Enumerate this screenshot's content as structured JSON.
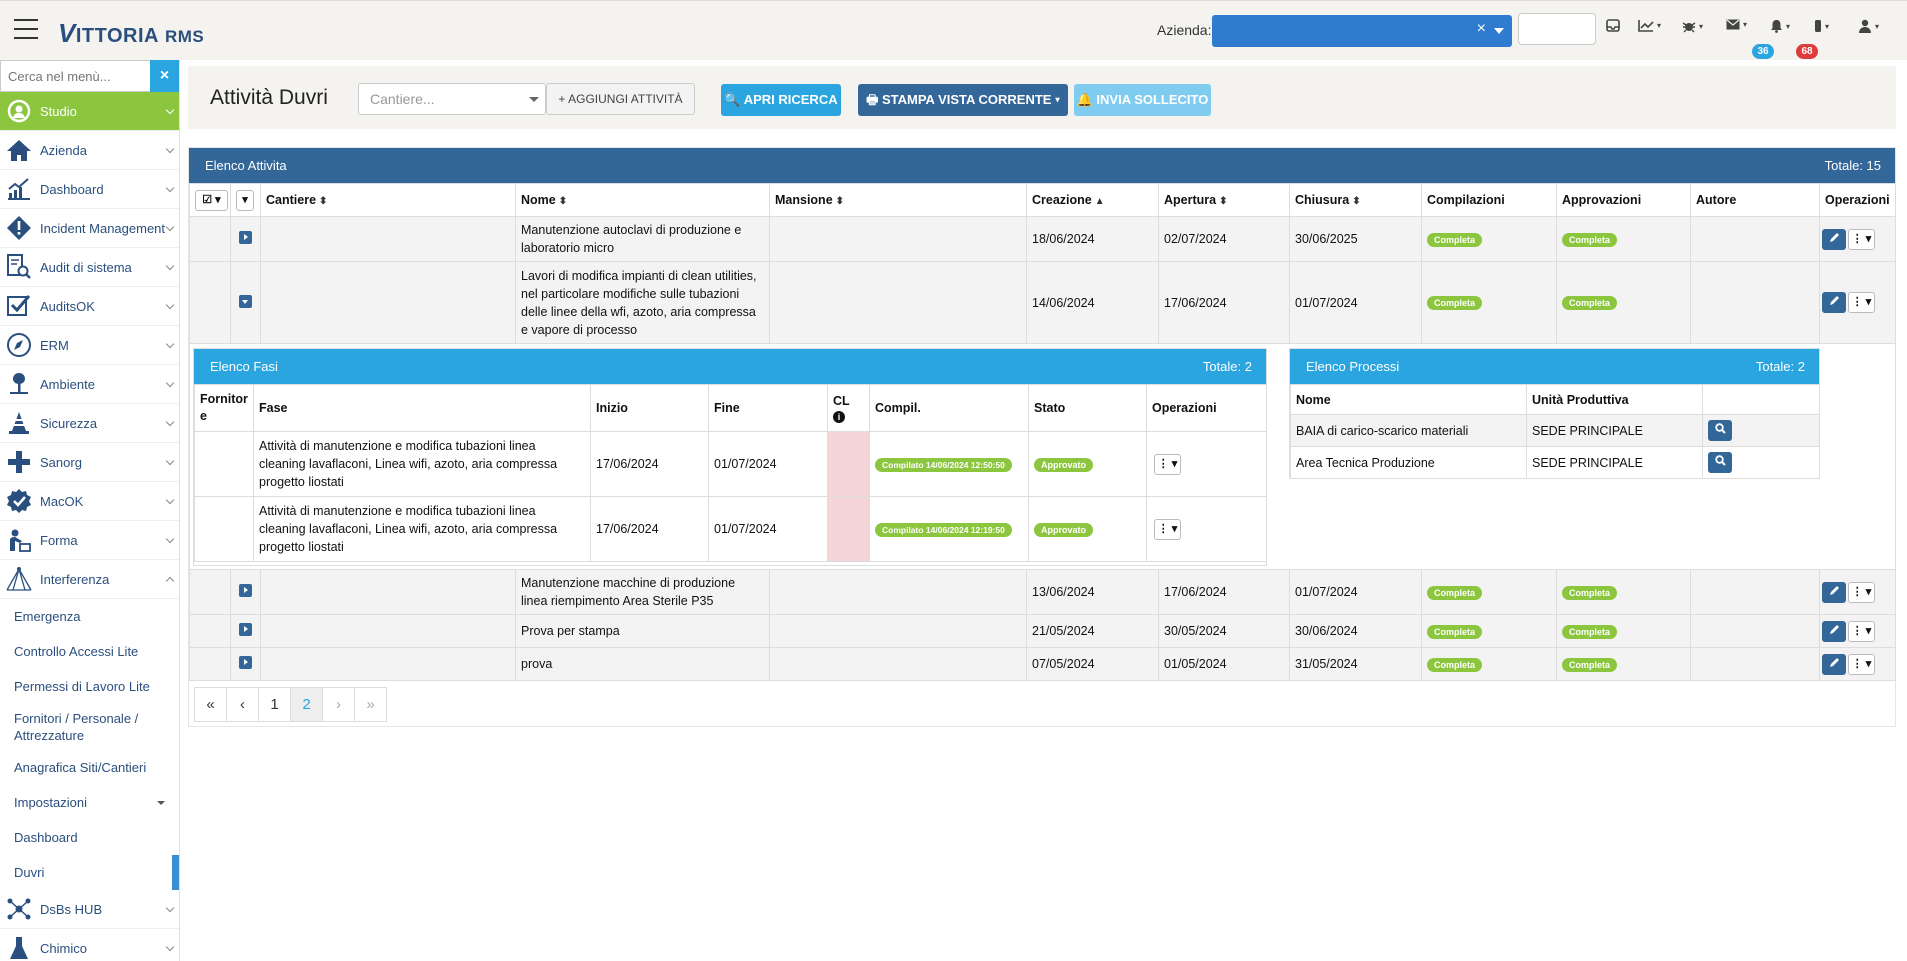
{
  "app": {
    "logo_v": "V",
    "logo_text": "ITTORIA",
    "logo_rms": "RMS",
    "azienda_label": "Azienda:",
    "azienda_clear": "×"
  },
  "top_icons": [
    {
      "name": "inbox-icon",
      "glyph": "▭"
    },
    {
      "name": "chart-icon",
      "glyph": "📈"
    },
    {
      "name": "bug-icon",
      "glyph": "✱"
    },
    {
      "name": "envelope-icon",
      "glyph": "✉"
    },
    {
      "name": "bell-icon",
      "glyph": "🔔"
    },
    {
      "name": "device-icon",
      "glyph": "▮"
    },
    {
      "name": "user-icon",
      "glyph": "👤"
    }
  ],
  "badges": {
    "mail": "36",
    "bell": "68",
    "mail_color": "#2aa5e0",
    "bell_color": "#e03b3b"
  },
  "sidebar": {
    "search_placeholder": "Cerca nel menù...",
    "clear": "×",
    "items": [
      {
        "label": "Studio",
        "icon": "studio-icon"
      },
      {
        "label": "Azienda",
        "icon": "house-icon"
      },
      {
        "label": "Dashboard",
        "icon": "chart-icon"
      },
      {
        "label": "Incident Management",
        "icon": "warning-icon"
      },
      {
        "label": "Audit di sistema",
        "icon": "document-search-icon"
      },
      {
        "label": "AuditsOK",
        "icon": "checkbox-icon"
      },
      {
        "label": "ERM",
        "icon": "compass-icon"
      },
      {
        "label": "Ambiente",
        "icon": "tree-icon"
      },
      {
        "label": "Sicurezza",
        "icon": "cone-icon"
      },
      {
        "label": "Sanorg",
        "icon": "cross-icon"
      },
      {
        "label": "MacOK",
        "icon": "badge-check-icon"
      },
      {
        "label": "Forma",
        "icon": "teacher-icon"
      },
      {
        "label": "Interferenza",
        "icon": "network-icon"
      }
    ],
    "subitems": [
      "Emergenza",
      "Controllo Accessi Lite",
      "Permessi di Lavoro Lite",
      "Fornitori / Personale / Attrezzature",
      "Anagrafica Siti/Cantieri",
      "Impostazioni",
      "Dashboard",
      "Duvri"
    ],
    "after": [
      {
        "label": "DsBs HUB",
        "icon": "hub-icon"
      },
      {
        "label": "Chimico",
        "icon": "flask-icon"
      }
    ]
  },
  "header": {
    "title": "Attività Duvri",
    "cantiere_placeholder": "Cantiere...",
    "add_label": "+ AGGIUNGI ATTIVITÀ",
    "search_label": "🔍 APRI RICERCA",
    "print_label": "🖶  STAMPA VISTA CORRENTE ▾",
    "remind_label": "🔔 INVIA SOLLECITO"
  },
  "list": {
    "title": "Elenco Attivita",
    "total": "Totale: 15",
    "columns": [
      "Cantiere",
      "Nome",
      "Mansione",
      "Creazione",
      "Apertura",
      "Chiusura",
      "Compilazioni",
      "Approvazioni",
      "Autore",
      "Operazioni"
    ],
    "rows": [
      {
        "nome": "Manutenzione autoclavi di produzione e laboratorio micro",
        "creazione": "18/06/2024",
        "apertura": "02/07/2024",
        "chiusura": "30/06/2025",
        "comp": "Completa",
        "appr": "Completa"
      },
      {
        "nome": "Lavori di modifica impianti di clean utilities, nel particolare modifiche sulle tubazioni delle linee della wfi, azoto, aria compressa e vapore di processo",
        "creazione": "14/06/2024",
        "apertura": "17/06/2024",
        "chiusura": "01/07/2024",
        "comp": "Completa",
        "appr": "Completa"
      },
      {
        "nome": "Manutenzione macchine di produzione linea riempimento Area Sterile P35",
        "creazione": "13/06/2024",
        "apertura": "17/06/2024",
        "chiusura": "01/07/2024",
        "comp": "Completa",
        "appr": "Completa"
      },
      {
        "nome": "Prova per stampa",
        "creazione": "21/05/2024",
        "apertura": "30/05/2024",
        "chiusura": "30/06/2024",
        "comp": "Completa",
        "appr": "Completa"
      },
      {
        "nome": "prova",
        "creazione": "07/05/2024",
        "apertura": "01/05/2024",
        "chiusura": "31/05/2024",
        "comp": "Completa",
        "appr": "Completa"
      }
    ]
  },
  "fasi": {
    "title": "Elenco Fasi",
    "total": "Totale: 2",
    "columns": [
      "Fornitor e",
      "Fase",
      "Inizio",
      "Fine",
      "CL",
      "Compil.",
      "Stato",
      "Operazioni"
    ],
    "rows": [
      {
        "fase": "Attività di manutenzione e modifica tubazioni linea cleaning lavaflaconi, Linea wifi, azoto, aria compressa progetto liostati",
        "inizio": "17/06/2024",
        "fine": "01/07/2024",
        "compil": "Compilato 14/06/2024 12:50:50",
        "stato": "Approvato"
      },
      {
        "fase": "Attività di manutenzione e modifica tubazioni linea cleaning lavaflaconi, Linea wifi, azoto, aria compressa progetto liostati",
        "inizio": "17/06/2024",
        "fine": "01/07/2024",
        "compil": "Compilato 14/06/2024 12:19:50",
        "stato": "Approvato"
      }
    ]
  },
  "processi": {
    "title": "Elenco Processi",
    "total": "Totale: 2",
    "columns": [
      "Nome",
      "Unità Produttiva"
    ],
    "rows": [
      {
        "nome": "BAIA di carico-scarico materiali",
        "unita": "SEDE PRINCIPALE"
      },
      {
        "nome": "Area Tecnica Produzione",
        "unita": "SEDE PRINCIPALE"
      }
    ]
  },
  "pager": {
    "first": "«",
    "prev": "‹",
    "p1": "1",
    "p2": "2",
    "next": "›",
    "last": "»"
  }
}
